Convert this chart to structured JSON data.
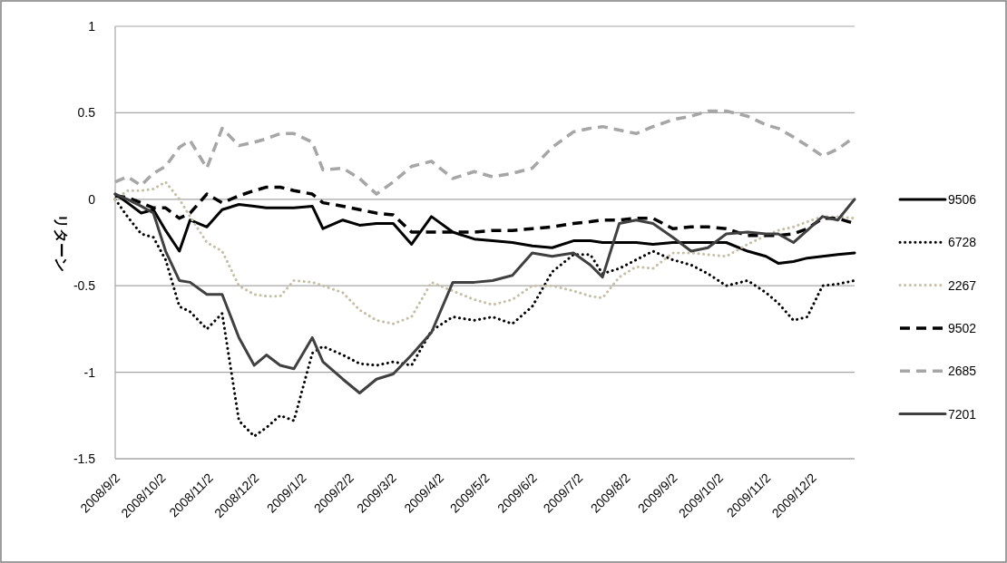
{
  "chart_data": {
    "type": "line",
    "ylabel": "リターン",
    "x": [
      "2008-09-02",
      "2008-09-10",
      "2008-09-19",
      "2008-09-27",
      "2008-10-05",
      "2008-10-14",
      "2008-10-21",
      "2008-11-01",
      "2008-11-11",
      "2008-11-22",
      "2008-12-02",
      "2008-12-10",
      "2008-12-19",
      "2008-12-28",
      "2009-01-09",
      "2009-01-16",
      "2009-01-29",
      "2009-02-09",
      "2009-02-20",
      "2009-03-03",
      "2009-03-15",
      "2009-03-28",
      "2009-04-11",
      "2009-04-25",
      "2009-05-07",
      "2009-05-20",
      "2009-06-02",
      "2009-06-15",
      "2009-06-29",
      "2009-07-10",
      "2009-07-18",
      "2009-07-29",
      "2009-08-09",
      "2009-08-20",
      "2009-09-02",
      "2009-09-14",
      "2009-09-25",
      "2009-10-07",
      "2009-10-21",
      "2009-11-02",
      "2009-11-10",
      "2009-11-20",
      "2009-11-29",
      "2009-12-09",
      "2009-12-19",
      "2009-12-30"
    ],
    "series": [
      {
        "name": "9506",
        "color": "#000000",
        "line_style": "solid",
        "values": [
          0.03,
          -0.02,
          -0.08,
          -0.06,
          -0.18,
          -0.3,
          -0.12,
          -0.16,
          -0.06,
          -0.03,
          -0.04,
          -0.05,
          -0.05,
          -0.05,
          -0.04,
          -0.17,
          -0.12,
          -0.15,
          -0.14,
          -0.14,
          -0.26,
          -0.1,
          -0.19,
          -0.23,
          -0.24,
          -0.25,
          -0.27,
          -0.28,
          -0.24,
          -0.24,
          -0.25,
          -0.25,
          -0.25,
          -0.26,
          -0.25,
          -0.25,
          -0.25,
          -0.25,
          -0.3,
          -0.33,
          -0.37,
          -0.36,
          -0.34,
          -0.33,
          -0.32,
          -0.31
        ]
      },
      {
        "name": "6728",
        "color": "#000000",
        "line_style": "dotted",
        "values": [
          0.0,
          -0.1,
          -0.2,
          -0.22,
          -0.35,
          -0.62,
          -0.65,
          -0.75,
          -0.66,
          -1.28,
          -1.37,
          -1.32,
          -1.25,
          -1.28,
          -0.89,
          -0.85,
          -0.9,
          -0.95,
          -0.96,
          -0.94,
          -0.96,
          -0.76,
          -0.68,
          -0.7,
          -0.68,
          -0.72,
          -0.62,
          -0.42,
          -0.32,
          -0.32,
          -0.43,
          -0.4,
          -0.35,
          -0.3,
          -0.35,
          -0.38,
          -0.43,
          -0.5,
          -0.47,
          -0.54,
          -0.6,
          -0.7,
          -0.68,
          -0.5,
          -0.49,
          -0.47
        ]
      },
      {
        "name": "2267",
        "color": "#c4bfa6",
        "line_style": "dotted",
        "values": [
          0.0,
          0.05,
          0.05,
          0.06,
          0.1,
          0.0,
          -0.1,
          -0.25,
          -0.3,
          -0.5,
          -0.55,
          -0.56,
          -0.56,
          -0.47,
          -0.48,
          -0.5,
          -0.54,
          -0.64,
          -0.7,
          -0.72,
          -0.68,
          -0.48,
          -0.53,
          -0.58,
          -0.61,
          -0.58,
          -0.5,
          -0.5,
          -0.53,
          -0.56,
          -0.57,
          -0.45,
          -0.39,
          -0.4,
          -0.31,
          -0.31,
          -0.32,
          -0.33,
          -0.26,
          -0.21,
          -0.18,
          -0.16,
          -0.13,
          -0.1,
          -0.1,
          -0.11
        ]
      },
      {
        "name": "9502",
        "color": "#000000",
        "line_style": "dashed",
        "values": [
          0.02,
          0.01,
          -0.02,
          -0.05,
          -0.05,
          -0.11,
          -0.08,
          0.03,
          -0.02,
          0.02,
          0.05,
          0.07,
          0.07,
          0.05,
          0.03,
          -0.02,
          -0.04,
          -0.06,
          -0.08,
          -0.09,
          -0.19,
          -0.19,
          -0.19,
          -0.19,
          -0.18,
          -0.18,
          -0.17,
          -0.16,
          -0.14,
          -0.13,
          -0.12,
          -0.12,
          -0.11,
          -0.11,
          -0.17,
          -0.16,
          -0.16,
          -0.17,
          -0.21,
          -0.21,
          -0.21,
          -0.2,
          -0.17,
          -0.11,
          -0.11,
          -0.14
        ]
      },
      {
        "name": "2685",
        "color": "#a6a6a6",
        "line_style": "dashed",
        "values": [
          0.1,
          0.13,
          0.08,
          0.15,
          0.19,
          0.3,
          0.34,
          0.18,
          0.41,
          0.31,
          0.33,
          0.35,
          0.38,
          0.38,
          0.33,
          0.17,
          0.18,
          0.12,
          0.03,
          0.1,
          0.19,
          0.22,
          0.12,
          0.16,
          0.13,
          0.15,
          0.18,
          0.3,
          0.39,
          0.41,
          0.42,
          0.4,
          0.38,
          0.42,
          0.46,
          0.48,
          0.51,
          0.51,
          0.48,
          0.43,
          0.41,
          0.36,
          0.31,
          0.25,
          0.29,
          0.36
        ]
      },
      {
        "name": "7201",
        "color": "#404040",
        "line_style": "solid",
        "values": [
          0.03,
          0.0,
          -0.04,
          -0.08,
          -0.3,
          -0.47,
          -0.48,
          -0.55,
          -0.55,
          -0.8,
          -0.96,
          -0.9,
          -0.96,
          -0.98,
          -0.8,
          -0.94,
          -1.04,
          -1.12,
          -1.04,
          -1.01,
          -0.9,
          -0.77,
          -0.48,
          -0.48,
          -0.47,
          -0.44,
          -0.31,
          -0.33,
          -0.31,
          -0.38,
          -0.45,
          -0.14,
          -0.12,
          -0.14,
          -0.22,
          -0.3,
          -0.28,
          -0.2,
          -0.19,
          -0.2,
          -0.2,
          -0.25,
          -0.18,
          -0.1,
          -0.12,
          0.0
        ]
      }
    ],
    "xlim": [
      "2008-09-02",
      "2009-12-30"
    ],
    "xticks": [
      {
        "value": "2008-09-02",
        "label": "2008/9/2"
      },
      {
        "value": "2008-10-02",
        "label": "2008/10/2"
      },
      {
        "value": "2008-11-02",
        "label": "2008/11/2"
      },
      {
        "value": "2008-12-02",
        "label": "2008/12/2"
      },
      {
        "value": "2009-01-02",
        "label": "2009/1/2"
      },
      {
        "value": "2009-02-02",
        "label": "2009/2/2"
      },
      {
        "value": "2009-03-02",
        "label": "2009/3/2"
      },
      {
        "value": "2009-04-02",
        "label": "2009/4/2"
      },
      {
        "value": "2009-05-02",
        "label": "2009/5/2"
      },
      {
        "value": "2009-06-02",
        "label": "2009/6/2"
      },
      {
        "value": "2009-07-02",
        "label": "2009/7/2"
      },
      {
        "value": "2009-08-02",
        "label": "2009/8/2"
      },
      {
        "value": "2009-09-02",
        "label": "2009/9/2"
      },
      {
        "value": "2009-10-02",
        "label": "2009/10/2"
      },
      {
        "value": "2009-11-02",
        "label": "2009/11/2"
      },
      {
        "value": "2009-12-02",
        "label": "2009/12/2"
      }
    ],
    "ylim": [
      -1.5,
      1
    ],
    "yticks": [
      -1.5,
      -1,
      -0.5,
      0,
      0.5,
      1
    ],
    "grid": "y",
    "legend": "right"
  }
}
